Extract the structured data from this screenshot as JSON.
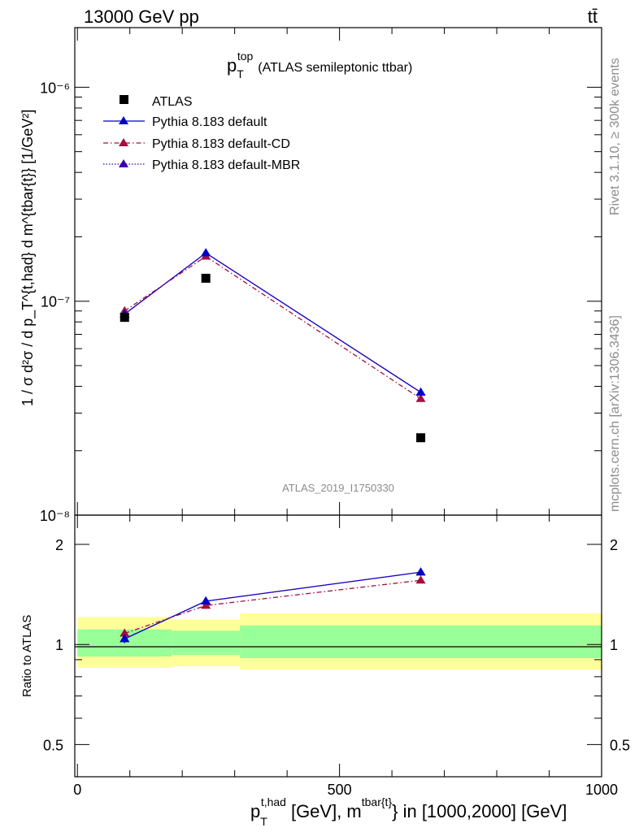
{
  "header": {
    "left": "13000 GeV pp",
    "right": "tt̄"
  },
  "side_labels": {
    "rivet": "Rivet 3.1.10, ≥ 300k events",
    "mcplots": "mcplots.cern.ch [arXiv:1306.3436]"
  },
  "chart_data": [
    {
      "type": "line",
      "title": "p_T^top (ATLAS semileptonic ttbar)",
      "title_main": "p",
      "title_sub": "T",
      "title_sup": "top",
      "title_rest": "(ATLAS semileptonic ttbar)",
      "watermark": "ATLAS_2019_I1750330",
      "yscale": "log",
      "ylim": [
        1e-08,
        1.9e-06
      ],
      "xlim": [
        -5,
        1000
      ],
      "ylabel": "1 / σ d²σ / d p_T^{t,had} d m^{tbar{t}} [1/GeV²]",
      "y_ticks": [
        {
          "value": 1e-08,
          "label": "10⁻⁸"
        },
        {
          "value": 1e-07,
          "label": "10⁻⁷"
        },
        {
          "value": 1e-06,
          "label": "10⁻⁶"
        }
      ],
      "x": [
        90,
        245,
        655
      ],
      "series": [
        {
          "name": "ATLAS",
          "values": [
            8.4e-08,
            1.28e-07,
            2.3e-08
          ],
          "color": "#000000",
          "marker": "square",
          "line": "none"
        },
        {
          "name": "Pythia 8.183 default",
          "values": [
            8.7e-08,
            1.68e-07,
            3.75e-08
          ],
          "color": "#0000cc",
          "marker": "triangle",
          "line": "solid"
        },
        {
          "name": "Pythia 8.183 default-CD",
          "values": [
            9e-08,
            1.62e-07,
            3.5e-08
          ],
          "color": "#a50f3c",
          "marker": "triangle",
          "line": "dashdot"
        },
        {
          "name": "Pythia 8.183 default-MBR",
          "values": [
            8.7e-08,
            1.68e-07,
            3.75e-08
          ],
          "color": "#3b00a8",
          "marker": "triangle",
          "line": "dotted"
        }
      ],
      "legend_position": "top-left"
    },
    {
      "type": "line",
      "ylabel": "Ratio to ATLAS",
      "xlabel": "p_T^{t,had} [GeV], m^{tbar{t}} in [1000,2000] [GeV]",
      "xlabel_main": "p",
      "xlabel_sub": "T",
      "xlabel_sup": "t,had",
      "xlabel_mid": "[GeV], m",
      "xlabel_sup2": "tbar{t}",
      "xlabel_rest": "} in [1000,2000] [GeV]",
      "ylim": [
        0.4,
        2.45
      ],
      "xlim": [
        -5,
        1000
      ],
      "y_ticks": [
        {
          "value": 0.5,
          "label": "0.5"
        },
        {
          "value": 1,
          "label": "1"
        },
        {
          "value": 2,
          "label": "2"
        }
      ],
      "x_ticks": [
        {
          "value": 0,
          "label": "0"
        },
        {
          "value": 500,
          "label": "500"
        },
        {
          "value": 1000,
          "label": "1000"
        }
      ],
      "bands": [
        {
          "x0": 0,
          "x1": 180,
          "yellow": [
            0.85,
            1.21
          ],
          "green": [
            0.92,
            1.11
          ]
        },
        {
          "x0": 180,
          "x1": 310,
          "yellow": [
            0.86,
            1.19
          ],
          "green": [
            0.93,
            1.1
          ]
        },
        {
          "x0": 310,
          "x1": 1000,
          "yellow": [
            0.84,
            1.24
          ],
          "green": [
            0.91,
            1.14
          ]
        }
      ],
      "x": [
        90,
        245,
        655
      ],
      "series": [
        {
          "name": "Pythia 8.183 default",
          "values": [
            1.04,
            1.35,
            1.65
          ],
          "errors": [
            0.03,
            0.03,
            0.04
          ],
          "color": "#0000cc",
          "line": "solid"
        },
        {
          "name": "Pythia 8.183 default-CD",
          "values": [
            1.08,
            1.31,
            1.56
          ],
          "errors": [
            0.03,
            0.03,
            0.03
          ],
          "color": "#a50f3c",
          "line": "dashdot"
        },
        {
          "name": "Pythia 8.183 default-MBR",
          "values": [
            1.04,
            1.35,
            1.65
          ],
          "errors": [
            0.03,
            0.03,
            0.04
          ],
          "color": "#3b00a8",
          "line": "dotted"
        }
      ]
    }
  ]
}
